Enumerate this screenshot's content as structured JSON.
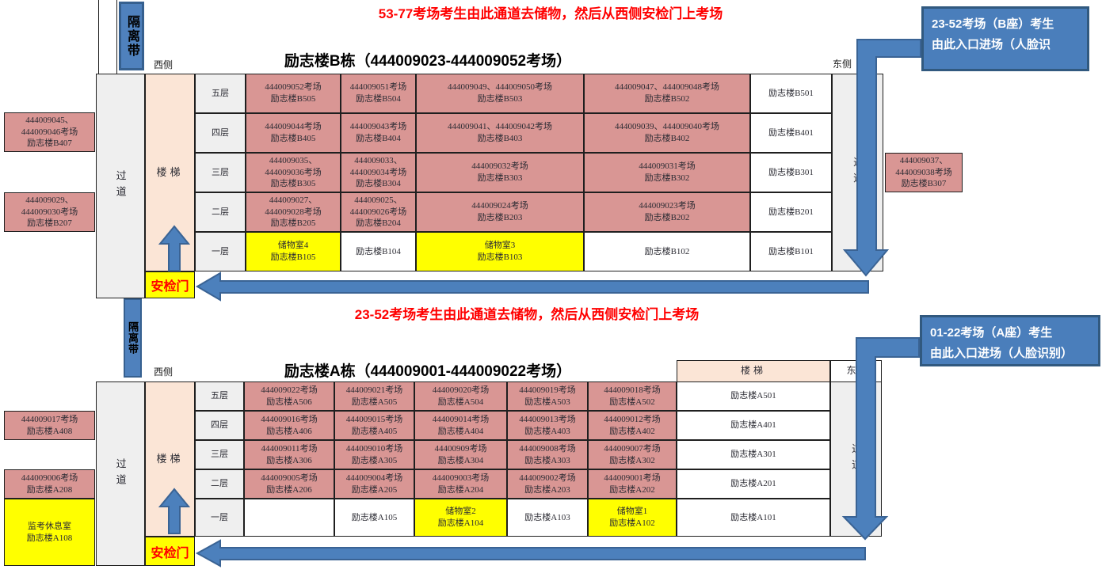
{
  "notes": {
    "top": "53-77考场考生由此通道去储物，然后从西侧安检门上考场",
    "middle": "23-52考场考生由此通道去储物，然后从西侧安检门上考场"
  },
  "labels": {
    "isolation_band": "隔离带",
    "west": "西侧",
    "east": "东侧",
    "corridor": "过道",
    "stairs": "楼梯",
    "security_gate": "安检门"
  },
  "callout_b": {
    "line1": "23-52考场（B座）考生",
    "line2": "由此入口进场（人脸识"
  },
  "callout_a": {
    "line1": "01-22考场（A座）考生",
    "line2": "由此入口进场（人脸识别）"
  },
  "colors": {
    "exam_room_pink": "#d99694",
    "storage_yellow": "#ffff00",
    "corridor_gray": "#efefef",
    "stairs_peach": "#fbe5d6",
    "arrow_blue": "#4c80bc",
    "arrow_border_blue": "#3a6394",
    "note_red": "#ff0000"
  },
  "building_b": {
    "title": "励志楼B栋（444009023-444009052考场）",
    "floors": [
      "五层",
      "四层",
      "三层",
      "二层",
      "一层"
    ],
    "cells": [
      [
        {
          "lines": [
            "444009052考场",
            "励志楼B505"
          ],
          "bg": "pink"
        },
        {
          "lines": [
            "444009051考场",
            "励志楼B504"
          ],
          "bg": "pink"
        },
        {
          "lines": [
            "444009049、444009050考场",
            "励志楼B503"
          ],
          "bg": "pink"
        },
        {
          "lines": [
            "444009047、444009048考场",
            "励志楼B502"
          ],
          "bg": "pink"
        },
        {
          "lines": [
            "励志楼B501"
          ],
          "bg": ""
        }
      ],
      [
        {
          "lines": [
            "444009044考场",
            "励志楼B405"
          ],
          "bg": "pink"
        },
        {
          "lines": [
            "444009043考场",
            "励志楼B404"
          ],
          "bg": "pink"
        },
        {
          "lines": [
            "444009041、444009042考场",
            "励志楼B403"
          ],
          "bg": "pink"
        },
        {
          "lines": [
            "444009039、444009040考场",
            "励志楼B402"
          ],
          "bg": "pink"
        },
        {
          "lines": [
            "励志楼B401"
          ],
          "bg": ""
        }
      ],
      [
        {
          "lines": [
            "444009035、",
            "444009036考场",
            "励志楼B305"
          ],
          "bg": "pink"
        },
        {
          "lines": [
            "444009033、",
            "444009034考场",
            "励志楼B304"
          ],
          "bg": "pink"
        },
        {
          "lines": [
            "444009032考场",
            "励志楼B303"
          ],
          "bg": "pink"
        },
        {
          "lines": [
            "444009031考场",
            "励志楼B302"
          ],
          "bg": "pink"
        },
        {
          "lines": [
            "励志楼B301"
          ],
          "bg": ""
        }
      ],
      [
        {
          "lines": [
            "444009027、",
            "444009028考场",
            "励志楼B205"
          ],
          "bg": "pink"
        },
        {
          "lines": [
            "444009025、",
            "444009026考场",
            "励志楼B204"
          ],
          "bg": "pink"
        },
        {
          "lines": [
            "444009024考场",
            "励志楼B203"
          ],
          "bg": "pink"
        },
        {
          "lines": [
            "444009023考场",
            "励志楼B202"
          ],
          "bg": "pink"
        },
        {
          "lines": [
            "励志楼B201"
          ],
          "bg": ""
        }
      ],
      [
        {
          "lines": [
            "储物室4",
            "励志楼B105"
          ],
          "bg": "yellow"
        },
        {
          "lines": [
            "励志楼B104"
          ],
          "bg": ""
        },
        {
          "lines": [
            "储物室3",
            "励志楼B103"
          ],
          "bg": "yellow"
        },
        {
          "lines": [
            "励志楼B102"
          ],
          "bg": ""
        },
        {
          "lines": [
            "励志楼B101"
          ],
          "bg": ""
        }
      ]
    ],
    "left_boxes": [
      {
        "lines": [
          "444009045、",
          "444009046考场",
          "励志楼B407"
        ],
        "bg": "pink"
      },
      {
        "lines": [
          "444009029、",
          "444009030考场",
          "励志楼B207"
        ],
        "bg": "pink"
      }
    ],
    "right_boxes": [
      {
        "lines": [
          "444009037、",
          "444009038考场",
          "励志楼B307"
        ],
        "bg": "pink"
      }
    ]
  },
  "building_a": {
    "title": "励志楼A栋（444009001-444009022考场）",
    "floors": [
      "五层",
      "四层",
      "三层",
      "二层",
      "一层"
    ],
    "cells": [
      [
        {
          "lines": [
            "444009022考场",
            "励志楼A506"
          ],
          "bg": "pink"
        },
        {
          "lines": [
            "444009021考场",
            "励志楼A505"
          ],
          "bg": "pink"
        },
        {
          "lines": [
            "444009020考场",
            "励志楼A504"
          ],
          "bg": "pink"
        },
        {
          "lines": [
            "444009019考场",
            "励志楼A503"
          ],
          "bg": "pink"
        },
        {
          "lines": [
            "444009018考场",
            "励志楼A502"
          ],
          "bg": "pink"
        },
        {
          "lines": [
            "励志楼A501"
          ],
          "bg": ""
        }
      ],
      [
        {
          "lines": [
            "444009016考场",
            "励志楼A406"
          ],
          "bg": "pink"
        },
        {
          "lines": [
            "444009015考场",
            "励志楼A405"
          ],
          "bg": "pink"
        },
        {
          "lines": [
            "444009014考场",
            "励志楼A404"
          ],
          "bg": "pink"
        },
        {
          "lines": [
            "444009013考场",
            "励志楼A403"
          ],
          "bg": "pink"
        },
        {
          "lines": [
            "444009012考场",
            "励志楼A402"
          ],
          "bg": "pink"
        },
        {
          "lines": [
            "励志楼A401"
          ],
          "bg": ""
        }
      ],
      [
        {
          "lines": [
            "444009011考场",
            "励志楼A306"
          ],
          "bg": "pink"
        },
        {
          "lines": [
            "444009010考场",
            "励志楼A305"
          ],
          "bg": "pink"
        },
        {
          "lines": [
            "44400909考场",
            "励志楼A304"
          ],
          "bg": "pink"
        },
        {
          "lines": [
            "444009008考场",
            "励志楼A303"
          ],
          "bg": "pink"
        },
        {
          "lines": [
            "444009007考场",
            "励志楼A302"
          ],
          "bg": "pink"
        },
        {
          "lines": [
            "励志楼A301"
          ],
          "bg": ""
        }
      ],
      [
        {
          "lines": [
            "444009005考场",
            "励志楼A206"
          ],
          "bg": "pink"
        },
        {
          "lines": [
            "444009004考场",
            "励志楼A205"
          ],
          "bg": "pink"
        },
        {
          "lines": [
            "444009003考场",
            "励志楼A204"
          ],
          "bg": "pink"
        },
        {
          "lines": [
            "444009002考场",
            "励志楼A203"
          ],
          "bg": "pink"
        },
        {
          "lines": [
            "444009001考场",
            "励志楼A202"
          ],
          "bg": "pink"
        },
        {
          "lines": [
            "励志楼A201"
          ],
          "bg": ""
        }
      ],
      [
        {
          "lines": [],
          "bg": ""
        },
        {
          "lines": [
            "励志楼A105"
          ],
          "bg": ""
        },
        {
          "lines": [
            "储物室2",
            "励志楼A104"
          ],
          "bg": "yellow"
        },
        {
          "lines": [
            "励志楼A103"
          ],
          "bg": ""
        },
        {
          "lines": [
            "储物室1",
            "励志楼A102"
          ],
          "bg": "yellow"
        },
        {
          "lines": [
            "励志楼A101"
          ],
          "bg": ""
        }
      ]
    ],
    "left_boxes": [
      {
        "lines": [
          "444009017考场",
          "励志楼A408"
        ],
        "bg": "pink"
      },
      {
        "lines": [
          "444009006考场",
          "励志楼A208"
        ],
        "bg": "pink"
      },
      {
        "lines": [
          "监考休息室",
          "励志楼A108"
        ],
        "bg": "yellow"
      }
    ]
  }
}
